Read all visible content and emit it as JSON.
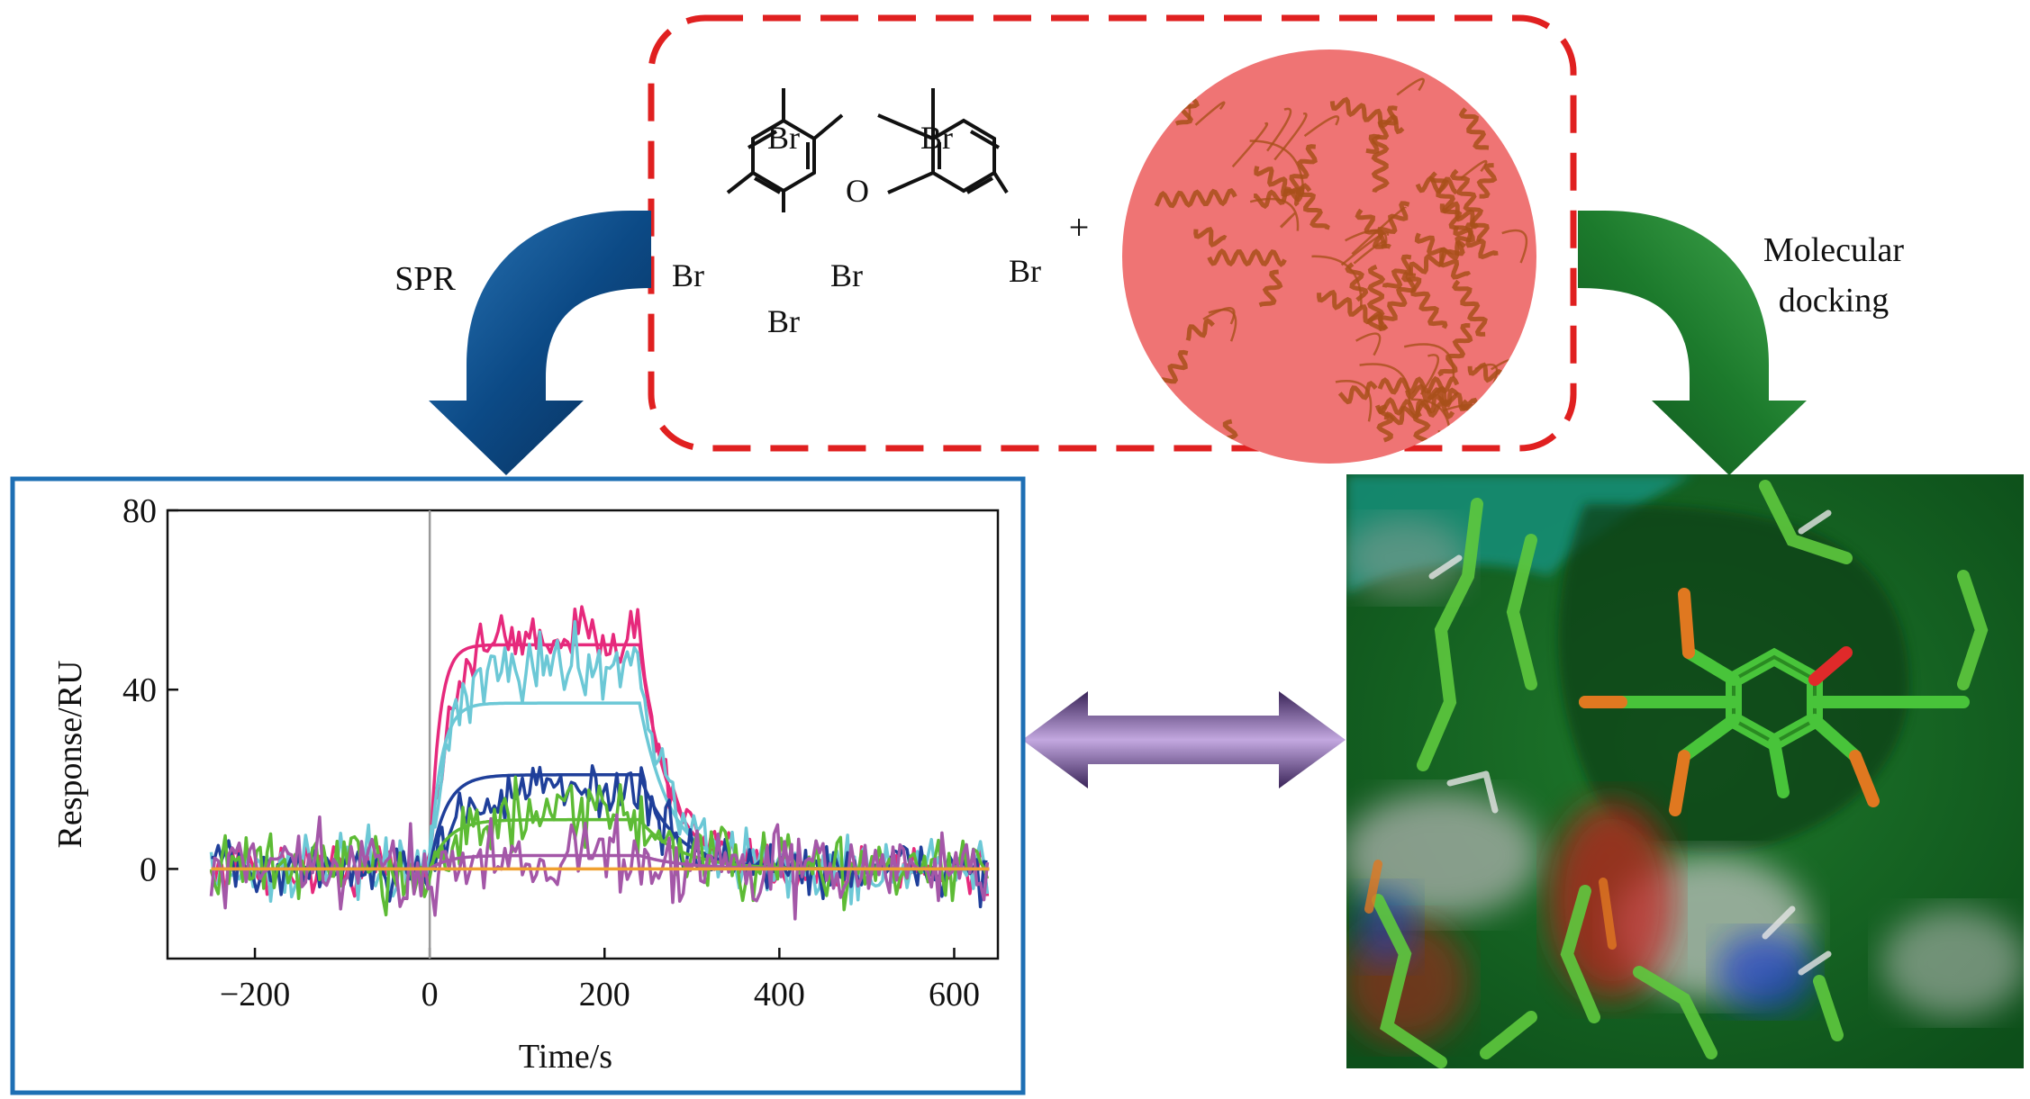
{
  "labels": {
    "spr": "SPR",
    "docking": [
      "Molecular",
      "docking"
    ],
    "plus": "+"
  },
  "molecule": {
    "oxygen": "O",
    "bromines": [
      "Br",
      "Br",
      "Br",
      "Br",
      "Br",
      "Br"
    ]
  },
  "colors": {
    "dashed_box": "#e02020",
    "protein_circle": "#ef7474",
    "protein_ribbon": "#a8501a",
    "spr_arrow": "#0f4f8a",
    "docking_arrow": "#1f8c2e",
    "double_arrow": "#5b3f7e",
    "chart_frame": "#1e6fb4"
  },
  "chart_data": {
    "type": "line",
    "xlabel": "Time/s",
    "ylabel": "Response/RU",
    "xlim": [
      -300,
      650
    ],
    "ylim": [
      -20,
      80
    ],
    "xticks": [
      -200,
      0,
      200,
      400,
      600
    ],
    "yticks": [
      0,
      40,
      80
    ],
    "xtick_labels": [
      "−200",
      "0",
      "200",
      "400",
      "600"
    ],
    "ytick_labels": [
      "0",
      "40",
      "80"
    ],
    "injection_marker_x": 0,
    "association_end": 240,
    "series": [
      {
        "color": "#e6297c",
        "fit_plateau": 50,
        "data_plateau": 52,
        "k_on": 0.06,
        "k_off": 0.03,
        "noise": 3.0
      },
      {
        "color": "#6cc8d6",
        "fit_plateau": 37,
        "data_plateau": 46,
        "k_on": 0.05,
        "k_off": 0.028,
        "noise": 3.5
      },
      {
        "color": "#1f3f9a",
        "fit_plateau": 21,
        "data_plateau": 18,
        "k_on": 0.035,
        "k_off": 0.025,
        "noise": 3.0
      },
      {
        "color": "#5dbb35",
        "fit_plateau": 11,
        "data_plateau": 12,
        "k_on": 0.03,
        "k_off": 0.022,
        "noise": 4.0
      },
      {
        "color": "#a457a8",
        "fit_plateau": 3,
        "data_plateau": 3,
        "k_on": 0.03,
        "k_off": 0.02,
        "noise": 4.5
      },
      {
        "color": "#f0a030",
        "fit_plateau": 0,
        "data_plateau": 0,
        "k_on": 0.03,
        "k_off": 0.02,
        "noise": 0.0
      }
    ]
  }
}
